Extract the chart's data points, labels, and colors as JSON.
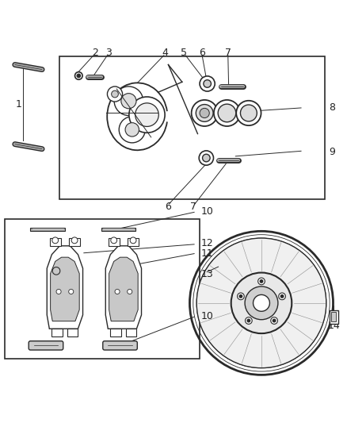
{
  "background_color": "#ffffff",
  "line_color": "#2a2a2a",
  "label_color": "#222222",
  "label_fontsize": 9,
  "fig_width": 4.38,
  "fig_height": 5.33,
  "dpi": 100
}
